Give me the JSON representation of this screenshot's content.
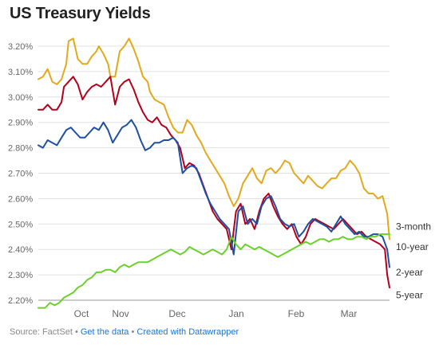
{
  "page": {
    "title": "US Treasury Yields"
  },
  "footer": {
    "source": "Source: FactSet",
    "sep": "•",
    "get_data": "Get the data",
    "created_with": "Created with Datawrapper"
  },
  "chart_data": {
    "type": "line",
    "title": "US Treasury Yields",
    "xlabel": "",
    "ylabel": "",
    "x_ticks": [
      "Oct",
      "Nov",
      "Dec",
      "Jan",
      "Feb",
      "Mar"
    ],
    "y_ticks": [
      "3.20%",
      "3.10%",
      "3.00%",
      "2.90%",
      "2.80%",
      "2.70%",
      "2.60%",
      "2.50%",
      "2.40%",
      "2.30%",
      "2.20%"
    ],
    "ylim": [
      2.2,
      3.2
    ],
    "grid": "horizontal",
    "legend": "line-end labels",
    "colors": {
      "3-month": "#6bd12a",
      "2-year": "#1f4fa3",
      "5-year": "#b3001b",
      "10-year": "#e3a91c"
    },
    "series": [
      {
        "name": "10-year",
        "color": "#e3a91c",
        "points": [
          [
            0,
            3.07
          ],
          [
            2,
            3.08
          ],
          [
            4,
            3.11
          ],
          [
            6,
            3.06
          ],
          [
            8,
            3.05
          ],
          [
            10,
            3.07
          ],
          [
            12,
            3.13
          ],
          [
            13,
            3.22
          ],
          [
            15,
            3.23
          ],
          [
            17,
            3.15
          ],
          [
            19,
            3.13
          ],
          [
            21,
            3.13
          ],
          [
            23,
            3.16
          ],
          [
            25,
            3.18
          ],
          [
            26,
            3.2
          ],
          [
            28,
            3.17
          ],
          [
            30,
            3.13
          ],
          [
            31,
            3.08
          ],
          [
            33,
            3.08
          ],
          [
            35,
            3.18
          ],
          [
            37,
            3.2
          ],
          [
            39,
            3.23
          ],
          [
            41,
            3.19
          ],
          [
            43,
            3.14
          ],
          [
            45,
            3.08
          ],
          [
            47,
            3.06
          ],
          [
            48,
            3.02
          ],
          [
            50,
            2.99
          ],
          [
            52,
            2.98
          ],
          [
            54,
            2.97
          ],
          [
            56,
            2.92
          ],
          [
            58,
            2.88
          ],
          [
            60,
            2.86
          ],
          [
            62,
            2.86
          ],
          [
            64,
            2.91
          ],
          [
            66,
            2.89
          ],
          [
            68,
            2.85
          ],
          [
            70,
            2.82
          ],
          [
            72,
            2.78
          ],
          [
            74,
            2.75
          ],
          [
            76,
            2.72
          ],
          [
            78,
            2.69
          ],
          [
            80,
            2.66
          ],
          [
            82,
            2.61
          ],
          [
            84,
            2.57
          ],
          [
            86,
            2.6
          ],
          [
            88,
            2.66
          ],
          [
            90,
            2.69
          ],
          [
            92,
            2.72
          ],
          [
            94,
            2.68
          ],
          [
            96,
            2.66
          ],
          [
            98,
            2.71
          ],
          [
            100,
            2.72
          ],
          [
            102,
            2.7
          ],
          [
            104,
            2.72
          ],
          [
            106,
            2.75
          ],
          [
            108,
            2.74
          ],
          [
            110,
            2.7
          ],
          [
            112,
            2.68
          ],
          [
            114,
            2.66
          ],
          [
            116,
            2.69
          ],
          [
            118,
            2.67
          ],
          [
            120,
            2.65
          ],
          [
            122,
            2.64
          ],
          [
            124,
            2.66
          ],
          [
            126,
            2.68
          ],
          [
            128,
            2.68
          ],
          [
            130,
            2.71
          ],
          [
            132,
            2.72
          ],
          [
            134,
            2.75
          ],
          [
            136,
            2.73
          ],
          [
            138,
            2.7
          ],
          [
            140,
            2.64
          ],
          [
            142,
            2.62
          ],
          [
            144,
            2.62
          ],
          [
            146,
            2.6
          ],
          [
            148,
            2.61
          ],
          [
            150,
            2.54
          ],
          [
            151,
            2.44
          ]
        ]
      },
      {
        "name": "5-year",
        "color": "#b3001b",
        "points": [
          [
            0,
            2.95
          ],
          [
            2,
            2.95
          ],
          [
            4,
            2.97
          ],
          [
            6,
            2.95
          ],
          [
            8,
            2.95
          ],
          [
            10,
            2.98
          ],
          [
            11,
            3.04
          ],
          [
            13,
            3.06
          ],
          [
            15,
            3.08
          ],
          [
            17,
            3.05
          ],
          [
            19,
            2.99
          ],
          [
            21,
            3.02
          ],
          [
            23,
            3.04
          ],
          [
            25,
            3.05
          ],
          [
            27,
            3.04
          ],
          [
            29,
            3.06
          ],
          [
            31,
            3.08
          ],
          [
            33,
            2.97
          ],
          [
            35,
            3.04
          ],
          [
            37,
            3.06
          ],
          [
            39,
            3.07
          ],
          [
            41,
            3.03
          ],
          [
            43,
            2.98
          ],
          [
            45,
            2.94
          ],
          [
            47,
            2.91
          ],
          [
            49,
            2.9
          ],
          [
            51,
            2.92
          ],
          [
            53,
            2.89
          ],
          [
            55,
            2.88
          ],
          [
            57,
            2.85
          ],
          [
            59,
            2.83
          ],
          [
            61,
            2.8
          ],
          [
            63,
            2.72
          ],
          [
            65,
            2.74
          ],
          [
            67,
            2.73
          ],
          [
            69,
            2.7
          ],
          [
            71,
            2.65
          ],
          [
            73,
            2.6
          ],
          [
            75,
            2.55
          ],
          [
            77,
            2.52
          ],
          [
            79,
            2.5
          ],
          [
            81,
            2.48
          ],
          [
            83,
            2.4
          ],
          [
            85,
            2.55
          ],
          [
            87,
            2.58
          ],
          [
            89,
            2.5
          ],
          [
            91,
            2.52
          ],
          [
            93,
            2.48
          ],
          [
            95,
            2.55
          ],
          [
            97,
            2.6
          ],
          [
            99,
            2.62
          ],
          [
            101,
            2.57
          ],
          [
            103,
            2.53
          ],
          [
            105,
            2.5
          ],
          [
            107,
            2.48
          ],
          [
            109,
            2.5
          ],
          [
            111,
            2.45
          ],
          [
            113,
            2.42
          ],
          [
            115,
            2.45
          ],
          [
            117,
            2.5
          ],
          [
            119,
            2.52
          ],
          [
            121,
            2.51
          ],
          [
            123,
            2.5
          ],
          [
            125,
            2.49
          ],
          [
            127,
            2.48
          ],
          [
            129,
            2.5
          ],
          [
            131,
            2.52
          ],
          [
            133,
            2.5
          ],
          [
            135,
            2.48
          ],
          [
            137,
            2.46
          ],
          [
            139,
            2.47
          ],
          [
            141,
            2.45
          ],
          [
            143,
            2.44
          ],
          [
            145,
            2.43
          ],
          [
            147,
            2.42
          ],
          [
            149,
            2.4
          ],
          [
            150,
            2.3
          ],
          [
            151,
            2.25
          ]
        ]
      },
      {
        "name": "2-year",
        "color": "#1f4fa3",
        "points": [
          [
            0,
            2.81
          ],
          [
            2,
            2.8
          ],
          [
            4,
            2.83
          ],
          [
            6,
            2.82
          ],
          [
            8,
            2.81
          ],
          [
            10,
            2.84
          ],
          [
            12,
            2.87
          ],
          [
            14,
            2.88
          ],
          [
            16,
            2.86
          ],
          [
            18,
            2.84
          ],
          [
            20,
            2.84
          ],
          [
            22,
            2.86
          ],
          [
            24,
            2.88
          ],
          [
            26,
            2.87
          ],
          [
            28,
            2.9
          ],
          [
            30,
            2.87
          ],
          [
            32,
            2.82
          ],
          [
            34,
            2.85
          ],
          [
            36,
            2.88
          ],
          [
            38,
            2.89
          ],
          [
            40,
            2.91
          ],
          [
            42,
            2.88
          ],
          [
            44,
            2.83
          ],
          [
            46,
            2.79
          ],
          [
            48,
            2.8
          ],
          [
            50,
            2.82
          ],
          [
            52,
            2.82
          ],
          [
            54,
            2.83
          ],
          [
            56,
            2.83
          ],
          [
            58,
            2.84
          ],
          [
            60,
            2.82
          ],
          [
            62,
            2.7
          ],
          [
            64,
            2.72
          ],
          [
            66,
            2.73
          ],
          [
            68,
            2.72
          ],
          [
            70,
            2.67
          ],
          [
            72,
            2.62
          ],
          [
            74,
            2.58
          ],
          [
            76,
            2.55
          ],
          [
            78,
            2.52
          ],
          [
            80,
            2.5
          ],
          [
            82,
            2.48
          ],
          [
            84,
            2.38
          ],
          [
            86,
            2.55
          ],
          [
            88,
            2.57
          ],
          [
            90,
            2.5
          ],
          [
            92,
            2.52
          ],
          [
            94,
            2.5
          ],
          [
            96,
            2.57
          ],
          [
            98,
            2.6
          ],
          [
            100,
            2.61
          ],
          [
            102,
            2.57
          ],
          [
            104,
            2.52
          ],
          [
            106,
            2.5
          ],
          [
            108,
            2.49
          ],
          [
            110,
            2.5
          ],
          [
            112,
            2.45
          ],
          [
            114,
            2.47
          ],
          [
            116,
            2.5
          ],
          [
            118,
            2.52
          ],
          [
            120,
            2.51
          ],
          [
            122,
            2.5
          ],
          [
            124,
            2.49
          ],
          [
            126,
            2.47
          ],
          [
            128,
            2.5
          ],
          [
            130,
            2.53
          ],
          [
            132,
            2.5
          ],
          [
            134,
            2.48
          ],
          [
            136,
            2.46
          ],
          [
            138,
            2.47
          ],
          [
            140,
            2.45
          ],
          [
            142,
            2.45
          ],
          [
            144,
            2.46
          ],
          [
            146,
            2.46
          ],
          [
            148,
            2.45
          ],
          [
            150,
            2.4
          ],
          [
            151,
            2.33
          ]
        ]
      },
      {
        "name": "3-month",
        "color": "#6bd12a",
        "points": [
          [
            0,
            2.17
          ],
          [
            3,
            2.17
          ],
          [
            5,
            2.19
          ],
          [
            7,
            2.18
          ],
          [
            9,
            2.19
          ],
          [
            11,
            2.21
          ],
          [
            13,
            2.22
          ],
          [
            15,
            2.23
          ],
          [
            17,
            2.25
          ],
          [
            19,
            2.26
          ],
          [
            21,
            2.28
          ],
          [
            23,
            2.29
          ],
          [
            25,
            2.31
          ],
          [
            27,
            2.31
          ],
          [
            29,
            2.32
          ],
          [
            31,
            2.32
          ],
          [
            33,
            2.31
          ],
          [
            35,
            2.33
          ],
          [
            37,
            2.34
          ],
          [
            39,
            2.33
          ],
          [
            41,
            2.34
          ],
          [
            43,
            2.35
          ],
          [
            45,
            2.35
          ],
          [
            47,
            2.35
          ],
          [
            49,
            2.36
          ],
          [
            51,
            2.37
          ],
          [
            53,
            2.38
          ],
          [
            55,
            2.39
          ],
          [
            57,
            2.4
          ],
          [
            59,
            2.39
          ],
          [
            61,
            2.38
          ],
          [
            63,
            2.39
          ],
          [
            65,
            2.41
          ],
          [
            67,
            2.4
          ],
          [
            69,
            2.39
          ],
          [
            71,
            2.38
          ],
          [
            73,
            2.39
          ],
          [
            75,
            2.4
          ],
          [
            77,
            2.39
          ],
          [
            79,
            2.38
          ],
          [
            81,
            2.4
          ],
          [
            83,
            2.45
          ],
          [
            85,
            2.42
          ],
          [
            87,
            2.4
          ],
          [
            89,
            2.42
          ],
          [
            91,
            2.41
          ],
          [
            93,
            2.4
          ],
          [
            95,
            2.41
          ],
          [
            97,
            2.4
          ],
          [
            99,
            2.39
          ],
          [
            101,
            2.38
          ],
          [
            103,
            2.37
          ],
          [
            105,
            2.38
          ],
          [
            107,
            2.39
          ],
          [
            109,
            2.4
          ],
          [
            111,
            2.41
          ],
          [
            113,
            2.42
          ],
          [
            115,
            2.43
          ],
          [
            117,
            2.42
          ],
          [
            119,
            2.43
          ],
          [
            121,
            2.44
          ],
          [
            123,
            2.44
          ],
          [
            125,
            2.43
          ],
          [
            127,
            2.44
          ],
          [
            129,
            2.44
          ],
          [
            131,
            2.45
          ],
          [
            133,
            2.44
          ],
          [
            135,
            2.44
          ],
          [
            137,
            2.45
          ],
          [
            139,
            2.45
          ],
          [
            141,
            2.44
          ],
          [
            143,
            2.45
          ],
          [
            145,
            2.45
          ],
          [
            147,
            2.46
          ],
          [
            149,
            2.46
          ],
          [
            151,
            2.46
          ]
        ]
      }
    ],
    "end_labels": [
      {
        "series": "3-month",
        "text": "3-month",
        "label_value": 2.49
      },
      {
        "series": "10-year",
        "text": "10-year",
        "label_value": 2.41
      },
      {
        "series": "2-year",
        "text": "2-year",
        "label_value": 2.31
      },
      {
        "series": "5-year",
        "text": "5-year",
        "label_value": 2.22
      }
    ]
  }
}
